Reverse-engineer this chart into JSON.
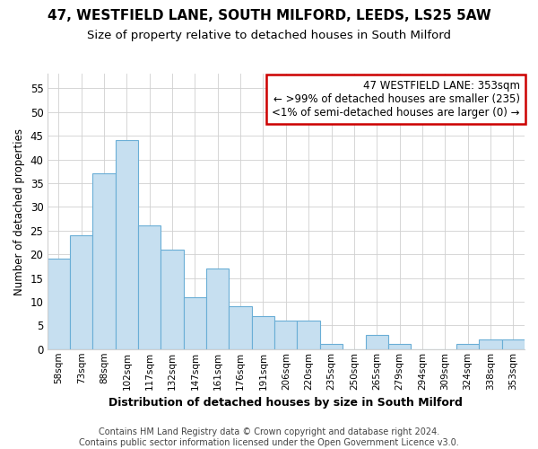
{
  "title": "47, WESTFIELD LANE, SOUTH MILFORD, LEEDS, LS25 5AW",
  "subtitle": "Size of property relative to detached houses in South Milford",
  "xlabel": "Distribution of detached houses by size in South Milford",
  "ylabel": "Number of detached properties",
  "footer_line1": "Contains HM Land Registry data © Crown copyright and database right 2024.",
  "footer_line2": "Contains public sector information licensed under the Open Government Licence v3.0.",
  "bar_labels": [
    "58sqm",
    "73sqm",
    "88sqm",
    "102sqm",
    "117sqm",
    "132sqm",
    "147sqm",
    "161sqm",
    "176sqm",
    "191sqm",
    "206sqm",
    "220sqm",
    "235sqm",
    "250sqm",
    "265sqm",
    "279sqm",
    "294sqm",
    "309sqm",
    "324sqm",
    "338sqm",
    "353sqm"
  ],
  "bar_values": [
    19,
    24,
    37,
    44,
    26,
    21,
    11,
    17,
    9,
    7,
    6,
    6,
    1,
    0,
    3,
    1,
    0,
    0,
    1,
    2,
    2
  ],
  "bar_color": "#c6dff0",
  "bar_edge_color": "#6aaed6",
  "ylim": [
    0,
    58
  ],
  "yticks": [
    0,
    5,
    10,
    15,
    20,
    25,
    30,
    35,
    40,
    45,
    50,
    55
  ],
  "annotation_line1": "47 WESTFIELD LANE: 353sqm",
  "annotation_line2": "← >99% of detached houses are smaller (235)",
  "annotation_line3": "<1% of semi-detached houses are larger (0) →",
  "box_edge_color": "#cc0000",
  "title_fontsize": 11,
  "subtitle_fontsize": 9.5,
  "annotation_fontsize": 8.5,
  "footer_fontsize": 7
}
